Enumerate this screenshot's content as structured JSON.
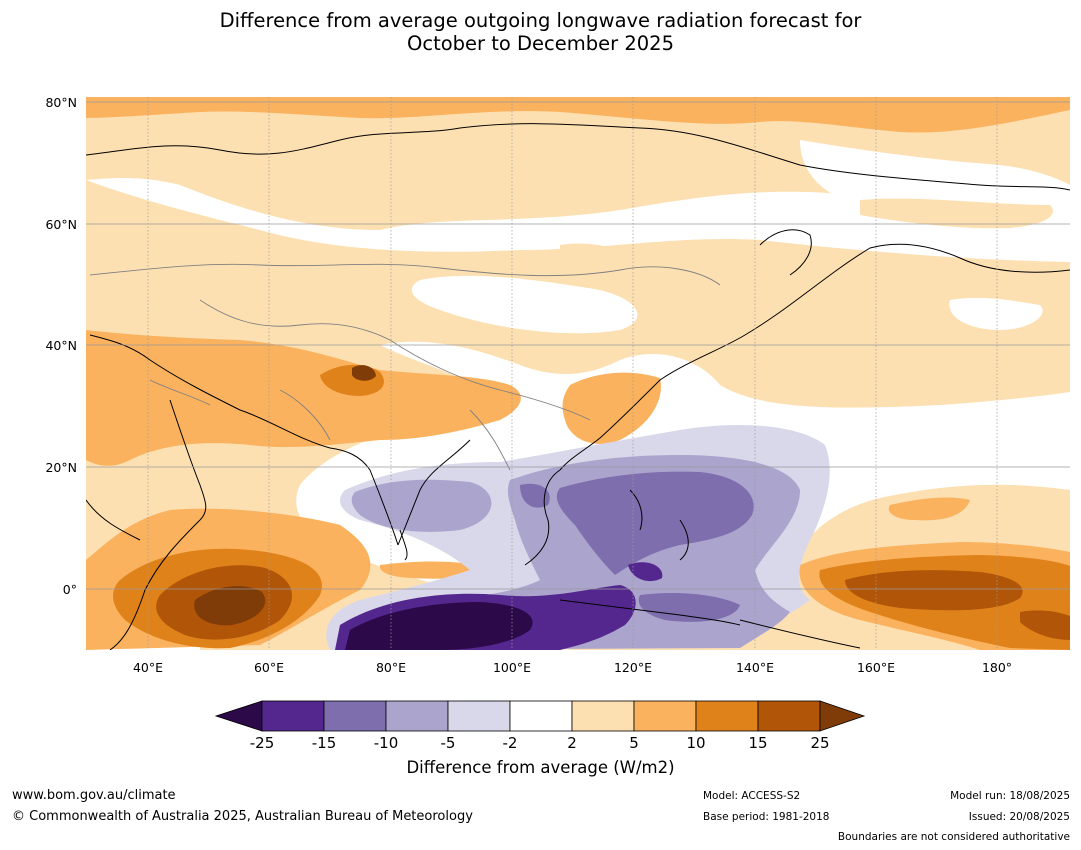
{
  "title": {
    "line1": "Difference from average outgoing longwave radiation forecast for",
    "line2": "October to December 2025"
  },
  "map": {
    "region": "Asia, Indian Ocean and western Pacific",
    "lat_ticks": [
      "80°N",
      "60°N",
      "40°N",
      "20°N",
      "0°"
    ],
    "lon_ticks": [
      "40°E",
      "60°E",
      "80°E",
      "100°E",
      "120°E",
      "140°E",
      "160°E",
      "180°"
    ]
  },
  "colorbar": {
    "title": "Difference from average (W/m2)",
    "tick_labels": [
      "-25",
      "-15",
      "-10",
      "-5",
      "-2",
      "2",
      "5",
      "10",
      "15",
      "25"
    ],
    "colors": [
      "#2c0a4a",
      "#54278f",
      "#7e6ead",
      "#aba4cd",
      "#d8d8ea",
      "#ffffff",
      "#fde0b2",
      "#fbb25e",
      "#e0821a",
      "#b15608",
      "#7f3b08"
    ]
  },
  "footer": {
    "url": "www.bom.gov.au/climate",
    "copyright": "© Commonwealth of Australia 2025, Australian Bureau of Meteorology",
    "model": "Model: ACCESS-S2",
    "base_period": "Base period: 1981-2018",
    "model_run": "Model run: 18/08/2025",
    "issued": "Issued: 20/08/2025",
    "disclaimer": "Boundaries are not considered authoritative"
  }
}
